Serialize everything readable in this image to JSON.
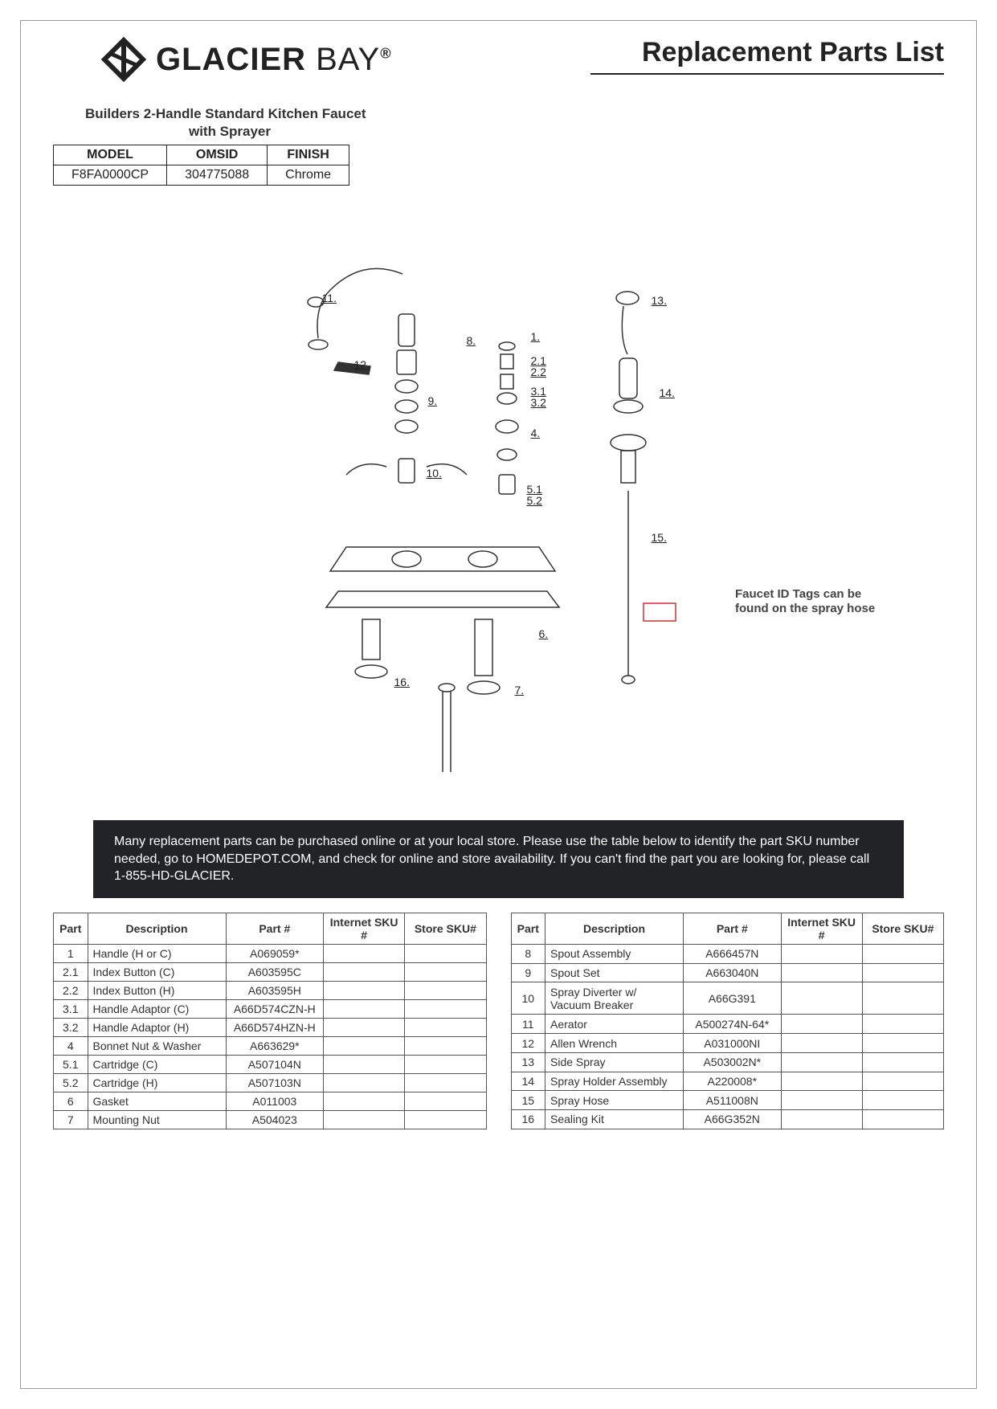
{
  "header": {
    "brand_main": "GLAC",
    "brand_bold": "IER",
    "brand_light": " BAY",
    "registered": "®",
    "page_title": "Replacement Parts List"
  },
  "product": {
    "title_line1": "Builders 2-Handle Standard Kitchen Faucet",
    "title_line2": "with Sprayer"
  },
  "model_table": {
    "headers": [
      "MODEL",
      "OMSID",
      "FINISH"
    ],
    "row": [
      "F8FA0000CP",
      "304775088",
      "Chrome"
    ]
  },
  "diagram": {
    "callouts": [
      "1.",
      "2.1",
      "2.2",
      "3.1",
      "3.2",
      "4.",
      "5.1",
      "5.2",
      "6.",
      "7.",
      "8.",
      "9.",
      "10.",
      "11.",
      "12.",
      "13.",
      "14.",
      "15.",
      "16."
    ],
    "tag_note": "Faucet ID Tags can be found on the spray hose"
  },
  "banner": "Many replacement parts can be purchased online or at your local store. Please use the table below to identify the part SKU number needed, go to HOMEDEPOT.COM, and check for online and store availability. If you can't find the part you are looking for, please call 1-855-HD-GLACIER.",
  "parts_headers": [
    "Part",
    "Description",
    "Part #",
    "Internet SKU #",
    "Store SKU#"
  ],
  "parts_left": [
    {
      "part": "1",
      "desc": "Handle (H or C)",
      "num": "A069059*",
      "isku": "",
      "ssku": ""
    },
    {
      "part": "2.1",
      "desc": "Index Button (C)",
      "num": "A603595C",
      "isku": "",
      "ssku": ""
    },
    {
      "part": "2.2",
      "desc": "Index Button (H)",
      "num": "A603595H",
      "isku": "",
      "ssku": ""
    },
    {
      "part": "3.1",
      "desc": "Handle Adaptor (C)",
      "num": "A66D574CZN-H",
      "isku": "",
      "ssku": ""
    },
    {
      "part": "3.2",
      "desc": "Handle Adaptor (H)",
      "num": "A66D574HZN-H",
      "isku": "",
      "ssku": ""
    },
    {
      "part": "4",
      "desc": "Bonnet Nut & Washer",
      "num": "A663629*",
      "isku": "",
      "ssku": ""
    },
    {
      "part": "5.1",
      "desc": "Cartridge  (C)",
      "num": "A507104N",
      "isku": "",
      "ssku": ""
    },
    {
      "part": "5.2",
      "desc": "Cartridge  (H)",
      "num": "A507103N",
      "isku": "",
      "ssku": ""
    },
    {
      "part": "6",
      "desc": "Gasket",
      "num": "A011003",
      "isku": "",
      "ssku": ""
    },
    {
      "part": "7",
      "desc": "Mounting Nut",
      "num": "A504023",
      "isku": "",
      "ssku": ""
    }
  ],
  "parts_right": [
    {
      "part": "8",
      "desc": "Spout Assembly",
      "num": "A666457N",
      "isku": "",
      "ssku": ""
    },
    {
      "part": "9",
      "desc": "Spout Set",
      "num": "A663040N",
      "isku": "",
      "ssku": ""
    },
    {
      "part": "10",
      "desc": "Spray Diverter w/ Vacuum Breaker",
      "num": "A66G391",
      "isku": "",
      "ssku": ""
    },
    {
      "part": "11",
      "desc": "Aerator",
      "num": "A500274N-64*",
      "isku": "",
      "ssku": ""
    },
    {
      "part": "12",
      "desc": "Allen Wrench",
      "num": "A031000NI",
      "isku": "",
      "ssku": ""
    },
    {
      "part": "13",
      "desc": "Side Spray",
      "num": "A503002N*",
      "isku": "",
      "ssku": ""
    },
    {
      "part": "14",
      "desc": "Spray Holder Assembly",
      "num": "A220008*",
      "isku": "",
      "ssku": ""
    },
    {
      "part": "15",
      "desc": "Spray Hose",
      "num": "A511008N",
      "isku": "",
      "ssku": ""
    },
    {
      "part": "16",
      "desc": "Sealing Kit",
      "num": "A66G352N",
      "isku": "",
      "ssku": ""
    }
  ],
  "colors": {
    "text": "#222222",
    "border": "#555555",
    "banner_bg": "#222326",
    "banner_text": "#ffffff",
    "page_bg": "#ffffff"
  }
}
